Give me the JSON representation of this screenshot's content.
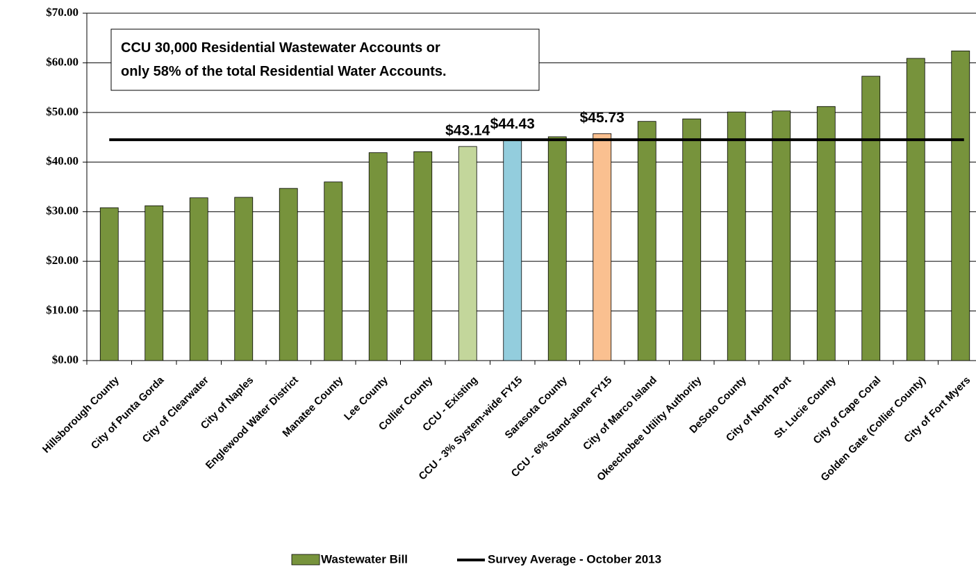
{
  "chart_data": {
    "type": "bar",
    "annotation": [
      "CCU 30,000 Residential Wastewater  Accounts or",
      "only 58% of the total Residential Water Accounts."
    ],
    "categories": [
      "Hillsborough County",
      "City of Punta Gorda",
      "City of Clearwater",
      "City of Naples",
      "Englewood Water District",
      "Manatee County",
      "Lee County",
      "Collier County",
      "CCU - Existing",
      "CCU - 3% System-wide FY15",
      "Sarasota County",
      "CCU - 6% Stand-alone FY15",
      "City of Marco Island",
      "Okeechobee Utility Authority",
      "DeSoto County",
      "City of North Port",
      "St. Lucie County",
      "City of Cape Coral",
      "Golden Gate (Collier County)",
      "City of Fort Myers"
    ],
    "series": [
      {
        "name": "Wastewater Bill",
        "color": "#77933c",
        "colors": [
          "#77933c",
          "#77933c",
          "#77933c",
          "#77933c",
          "#77933c",
          "#77933c",
          "#77933c",
          "#77933c",
          "#c3d69b",
          "#93cddd",
          "#77933c",
          "#fac090",
          "#77933c",
          "#77933c",
          "#77933c",
          "#77933c",
          "#77933c",
          "#77933c",
          "#77933c",
          "#77933c"
        ],
        "values": [
          30.8,
          31.2,
          32.8,
          32.9,
          34.7,
          36.0,
          41.9,
          42.1,
          43.14,
          44.43,
          45.1,
          45.73,
          48.2,
          48.7,
          50.1,
          50.3,
          51.2,
          57.3,
          60.9,
          62.4
        ],
        "value_labels": [
          null,
          null,
          null,
          null,
          null,
          null,
          null,
          null,
          "$43.14",
          "$44.43",
          null,
          "$45.73",
          null,
          null,
          null,
          null,
          null,
          null,
          null,
          null
        ]
      },
      {
        "name": "Survey Average - October 2013",
        "type": "line",
        "color": "#000000",
        "value": 44.5
      }
    ],
    "ylim": [
      0,
      70
    ],
    "yticks": [
      {
        "value": 0,
        "label": "$0.00"
      },
      {
        "value": 10,
        "label": "$10.00"
      },
      {
        "value": 20,
        "label": "$20.00"
      },
      {
        "value": 30,
        "label": "$30.00"
      },
      {
        "value": 40,
        "label": "$40.00"
      },
      {
        "value": 50,
        "label": "$50.00"
      },
      {
        "value": 60,
        "label": "$60.00"
      },
      {
        "value": 70,
        "label": "$70.00"
      }
    ],
    "grid": true
  }
}
